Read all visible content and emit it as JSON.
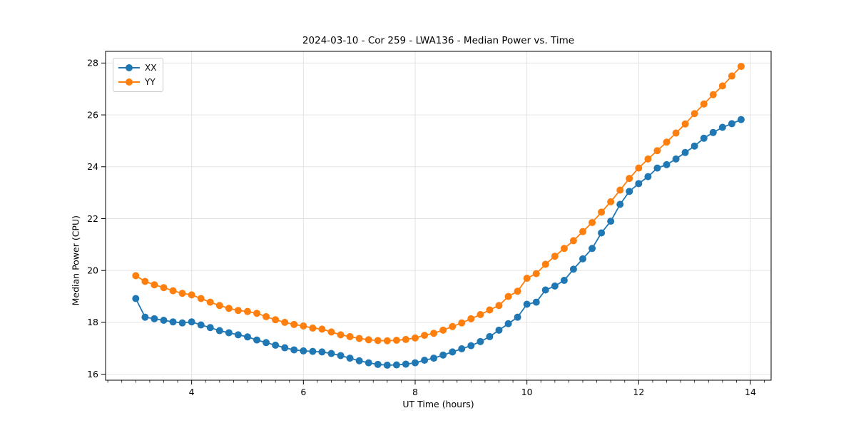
{
  "figure": {
    "title": "2024-03-10 - Cor 259 - LWA136 - Median Power vs. Time"
  },
  "chart_data": {
    "type": "line",
    "title": "2024-03-10 - Cor 259 - LWA136 - Median Power vs. Time",
    "xlabel": "UT Time (hours)",
    "ylabel": "Median Power (CPU)",
    "xlim": [
      2.46,
      14.37
    ],
    "ylim": [
      15.77,
      28.45
    ],
    "x_major_ticks": [
      4,
      6,
      8,
      10,
      12,
      14
    ],
    "x_minor_tick_step": 0.25,
    "y_major_ticks": [
      16,
      18,
      20,
      22,
      24,
      26,
      28
    ],
    "grid": true,
    "legend_position": "upper-left",
    "marker": "circle",
    "x": [
      3.0,
      3.167,
      3.333,
      3.5,
      3.667,
      3.833,
      4.0,
      4.167,
      4.333,
      4.5,
      4.667,
      4.833,
      5.0,
      5.167,
      5.333,
      5.5,
      5.667,
      5.833,
      6.0,
      6.167,
      6.333,
      6.5,
      6.667,
      6.833,
      7.0,
      7.167,
      7.333,
      7.5,
      7.667,
      7.833,
      8.0,
      8.167,
      8.333,
      8.5,
      8.667,
      8.833,
      9.0,
      9.167,
      9.333,
      9.5,
      9.667,
      9.833,
      10.0,
      10.167,
      10.333,
      10.5,
      10.667,
      10.833,
      11.0,
      11.167,
      11.333,
      11.5,
      11.667,
      11.833,
      12.0,
      12.167,
      12.333,
      12.5,
      12.667,
      12.833,
      13.0,
      13.167,
      13.333,
      13.5,
      13.667,
      13.833
    ],
    "series": [
      {
        "name": "XX",
        "color": "#1f77b4",
        "values": [
          18.92,
          18.2,
          18.14,
          18.08,
          18.02,
          17.98,
          18.02,
          17.9,
          17.8,
          17.68,
          17.6,
          17.52,
          17.44,
          17.32,
          17.22,
          17.12,
          17.02,
          16.94,
          16.9,
          16.88,
          16.86,
          16.8,
          16.72,
          16.62,
          16.52,
          16.44,
          16.38,
          16.35,
          16.36,
          16.39,
          16.44,
          16.54,
          16.62,
          16.74,
          16.86,
          16.98,
          17.1,
          17.26,
          17.45,
          17.7,
          17.95,
          18.2,
          18.7,
          18.78,
          19.25,
          19.4,
          19.62,
          20.05,
          20.45,
          20.85,
          21.45,
          21.9,
          22.55,
          23.05,
          23.35,
          23.62,
          23.95,
          24.08,
          24.3,
          24.55,
          24.8,
          25.1,
          25.32,
          25.52,
          25.66,
          25.82
        ]
      },
      {
        "name": "YY",
        "color": "#ff7f0e",
        "values": [
          19.8,
          19.58,
          19.45,
          19.34,
          19.22,
          19.12,
          19.06,
          18.92,
          18.78,
          18.65,
          18.54,
          18.46,
          18.42,
          18.35,
          18.22,
          18.1,
          18.0,
          17.92,
          17.86,
          17.78,
          17.74,
          17.63,
          17.52,
          17.45,
          17.38,
          17.33,
          17.3,
          17.29,
          17.31,
          17.34,
          17.4,
          17.5,
          17.58,
          17.7,
          17.84,
          17.98,
          18.14,
          18.3,
          18.48,
          18.65,
          19.0,
          19.2,
          19.7,
          19.88,
          20.24,
          20.55,
          20.85,
          21.15,
          21.5,
          21.85,
          22.25,
          22.65,
          23.1,
          23.55,
          23.95,
          24.3,
          24.62,
          24.95,
          25.3,
          25.65,
          26.05,
          26.42,
          26.78,
          27.12,
          27.5,
          27.87
        ]
      }
    ],
    "style": {
      "grid_color": "#e0e0e0",
      "spine_color": "#000000",
      "tick_color": "#000000",
      "background": "#ffffff"
    }
  }
}
